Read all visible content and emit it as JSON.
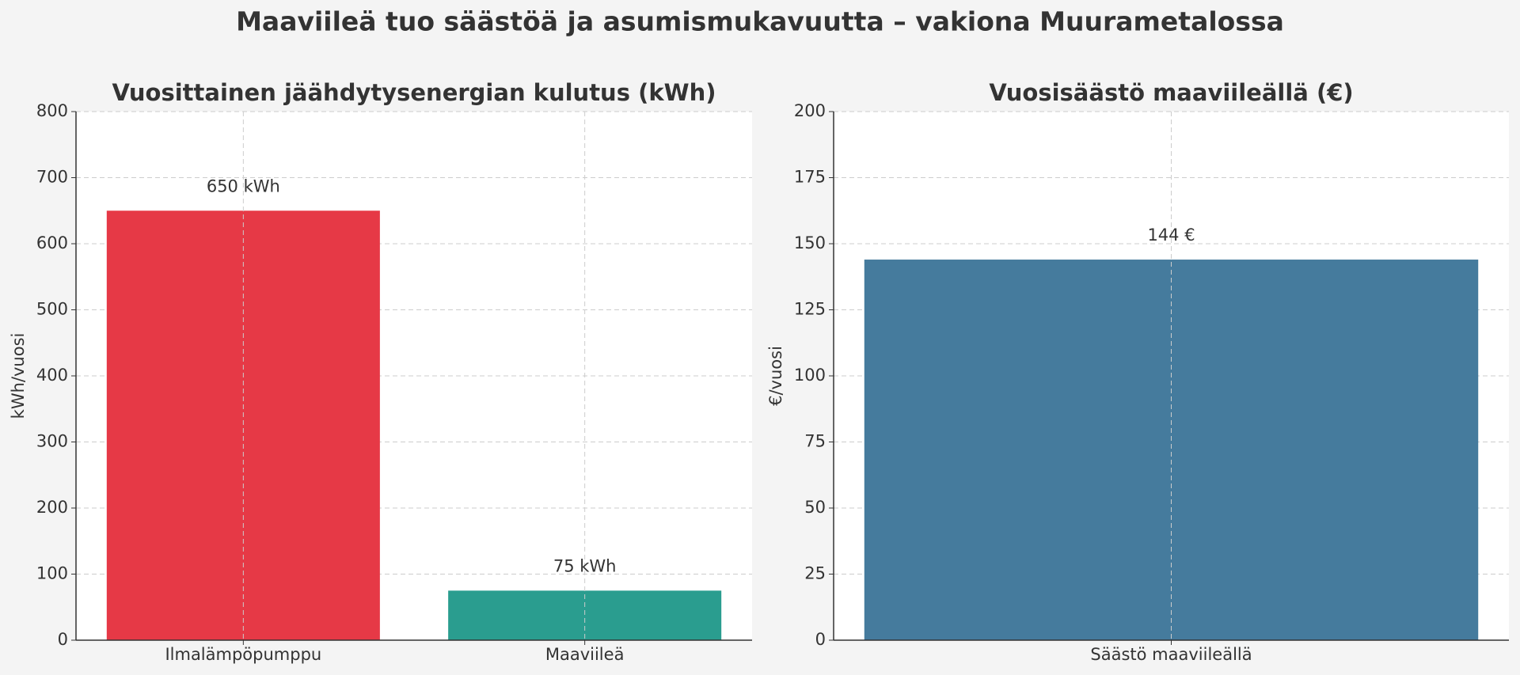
{
  "title": "Maaviileä tuo säästöä ja asumismukavuutta – vakiona Muurametalossa",
  "chart_data": [
    {
      "type": "bar",
      "title": "Vuosittainen jäähdytysenergian kulutus (kWh)",
      "ylabel": "kWh/vuosi",
      "categories": [
        "Ilmalämpöpumppu",
        "Maaviileä"
      ],
      "values": [
        650,
        75
      ],
      "value_labels": [
        "650 kWh",
        "75 kWh"
      ],
      "colors": [
        "#e63946",
        "#2a9d8f"
      ],
      "ylim": [
        0,
        800
      ],
      "yticks": [
        0,
        100,
        200,
        300,
        400,
        500,
        600,
        700,
        800
      ],
      "grid": true
    },
    {
      "type": "bar",
      "title": "Vuosisäästö maaviileällä (€)",
      "ylabel": "€/vuosi",
      "categories": [
        "Säästö maaviileällä"
      ],
      "values": [
        144
      ],
      "value_labels": [
        "144 €"
      ],
      "colors": [
        "#457b9d"
      ],
      "ylim": [
        0,
        200
      ],
      "yticks": [
        0,
        25,
        50,
        75,
        100,
        125,
        150,
        175,
        200
      ],
      "grid": true
    }
  ]
}
